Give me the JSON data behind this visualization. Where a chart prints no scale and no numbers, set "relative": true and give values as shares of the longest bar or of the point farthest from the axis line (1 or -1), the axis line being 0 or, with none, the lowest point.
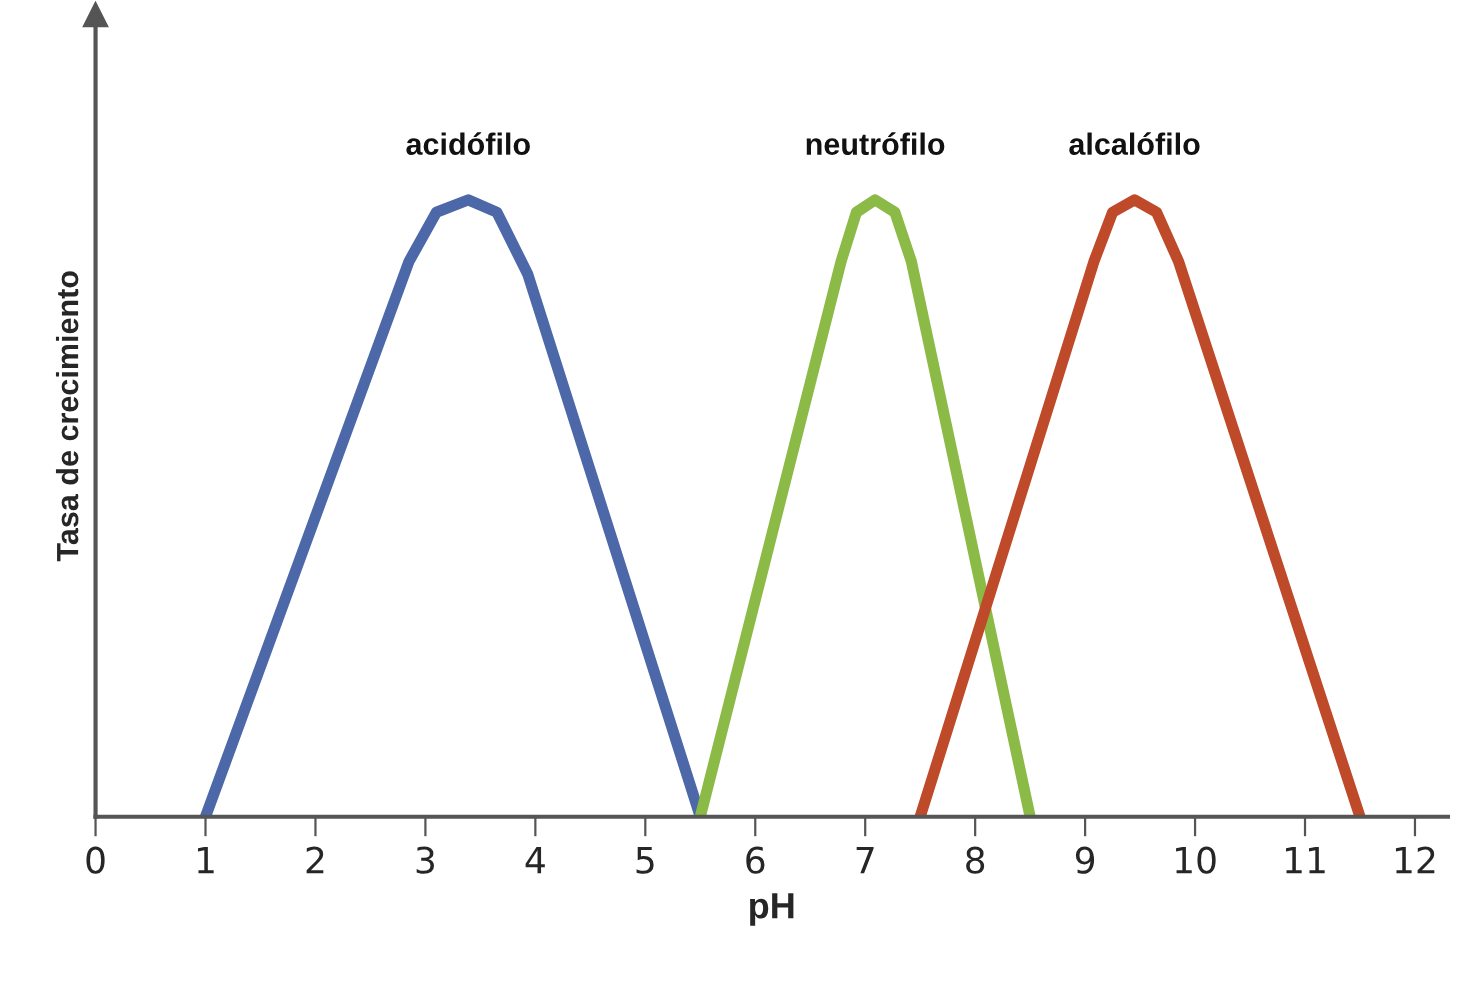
{
  "chart_data": {
    "type": "line",
    "relative": true,
    "xlabel": "pH",
    "ylabel": "Tasa de crecimiento",
    "xlim": [
      0,
      12.3
    ],
    "xticks": [
      0,
      1,
      2,
      3,
      4,
      5,
      6,
      7,
      8,
      9,
      10,
      11,
      12
    ],
    "grid": false,
    "legend": false,
    "line_style": "solid",
    "marker": "none",
    "series": [
      {
        "name": "acidófilo",
        "color": "#4c68a8",
        "x": [
          1,
          2.85,
          3.1,
          3.39,
          3.65,
          3.93,
          5.5
        ],
        "values": [
          0,
          0.9,
          0.98,
          1,
          0.98,
          0.88,
          0
        ]
      },
      {
        "name": "neutrófilo",
        "color": "#8cba46",
        "x": [
          5.5,
          6.78,
          6.92,
          7.09,
          7.27,
          7.42,
          8.5
        ],
        "values": [
          0,
          0.9,
          0.98,
          1,
          0.98,
          0.9,
          0
        ]
      },
      {
        "name": "alcalófilo",
        "color": "#bf4a2a",
        "x": [
          7.5,
          9.08,
          9.25,
          9.45,
          9.65,
          9.85,
          11.5
        ],
        "values": [
          0,
          0.9,
          0.98,
          1,
          0.98,
          0.9,
          0
        ]
      }
    ]
  }
}
